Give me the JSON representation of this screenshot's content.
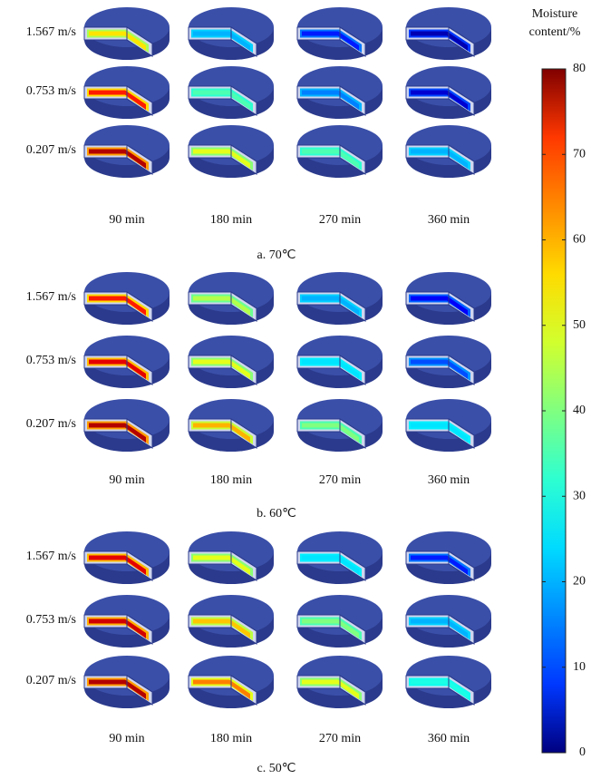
{
  "panels": [
    {
      "caption": "a. 70℃",
      "rows": [
        "1.567 m/s",
        "0.753 m/s",
        "0.207 m/s"
      ],
      "columns": [
        "90 min",
        "180 min",
        "270 min",
        "360 min"
      ]
    },
    {
      "caption": "b. 60℃",
      "rows": [
        "1.567 m/s",
        "0.753 m/s",
        "0.207 m/s"
      ],
      "columns": [
        "90 min",
        "180 min",
        "270 min",
        "360 min"
      ]
    },
    {
      "caption": "c. 50℃",
      "rows": [
        "1.567 m/s",
        "0.753 m/s",
        "0.207 m/s"
      ],
      "columns": [
        "90 min",
        "180 min",
        "270 min",
        "360 min"
      ]
    }
  ],
  "colorbar": {
    "title": [
      "Moisture",
      "content/%"
    ],
    "ticks": [
      0,
      10,
      20,
      30,
      40,
      50,
      60,
      70,
      80
    ]
  }
}
